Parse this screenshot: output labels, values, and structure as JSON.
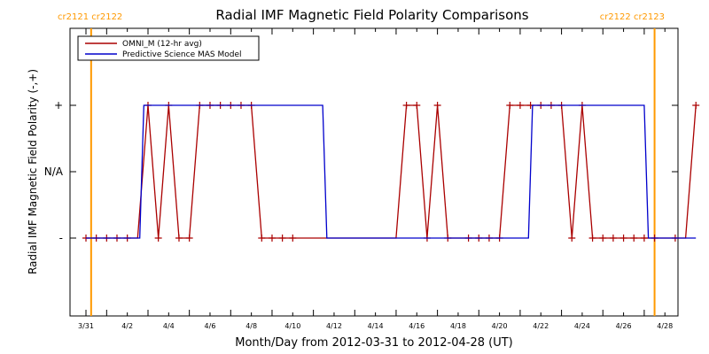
{
  "chart_data": {
    "type": "line",
    "title": "Radial IMF Magnetic Field Polarity Comparisons",
    "xlabel": "Month/Day from 2012-03-31 to 2012-04-28 (UT)",
    "ylabel": "Radial IMF Magnetic Field Polarity (-,+)",
    "xlim": [
      0,
      29.5
    ],
    "ylim": [
      -2,
      2
    ],
    "x_ticks": [
      {
        "x": 0,
        "label": "3/31"
      },
      {
        "x": 2,
        "label": "4/2"
      },
      {
        "x": 4,
        "label": "4/4"
      },
      {
        "x": 6,
        "label": "4/6"
      },
      {
        "x": 8,
        "label": "4/8"
      },
      {
        "x": 10,
        "label": "4/10"
      },
      {
        "x": 12,
        "label": "4/12"
      },
      {
        "x": 14,
        "label": "4/14"
      },
      {
        "x": 16,
        "label": "4/16"
      },
      {
        "x": 18,
        "label": "4/18"
      },
      {
        "x": 20,
        "label": "4/20"
      },
      {
        "x": 22,
        "label": "4/22"
      },
      {
        "x": 24,
        "label": "4/24"
      },
      {
        "x": 26,
        "label": "4/26"
      },
      {
        "x": 28,
        "label": "4/28"
      }
    ],
    "y_ticks": [
      {
        "y": 1,
        "label": "+"
      },
      {
        "y": 0,
        "label": "N/A"
      },
      {
        "y": -1,
        "label": "-"
      }
    ],
    "grid": false,
    "legend": "top-left",
    "carrington_markers": [
      {
        "x": 1.25,
        "label": "cr2121  cr2122",
        "align": "left",
        "color": "#ff9900"
      },
      {
        "x": 28.5,
        "label": "cr2122  cr2123",
        "align": "right",
        "color": "#ff9900"
      }
    ],
    "series": [
      {
        "name": "OMNI_M (12-hr avg)",
        "color": "#aa0000",
        "marker": "plus",
        "points": [
          [
            1.0,
            -1
          ],
          [
            1.5,
            -1
          ],
          [
            2.0,
            -1
          ],
          [
            2.5,
            -1
          ],
          [
            3.0,
            -1
          ],
          [
            3.5,
            -1
          ],
          [
            4.0,
            1
          ],
          [
            4.5,
            -1
          ],
          [
            5.0,
            1
          ],
          [
            5.5,
            -1
          ],
          [
            6.0,
            -1
          ],
          [
            6.5,
            1
          ],
          [
            7.0,
            1
          ],
          [
            7.5,
            1
          ],
          [
            8.0,
            1
          ],
          [
            8.5,
            1
          ],
          [
            9.0,
            1
          ],
          [
            9.5,
            -1
          ],
          [
            10.0,
            -1
          ],
          [
            10.5,
            -1
          ],
          [
            11.0,
            -1
          ],
          [
            11.5,
            -1
          ],
          [
            12.0,
            -1
          ],
          [
            12.5,
            -1
          ],
          [
            13.0,
            -1
          ],
          [
            13.5,
            -1
          ],
          [
            14.0,
            -1
          ],
          [
            14.5,
            -1
          ],
          [
            15.0,
            -1
          ],
          [
            15.5,
            -1
          ],
          [
            16.0,
            -1
          ],
          [
            16.5,
            1
          ],
          [
            17.0,
            1
          ],
          [
            17.5,
            -1
          ],
          [
            18.0,
            1
          ],
          [
            18.5,
            -1
          ],
          [
            19.0,
            -1
          ],
          [
            19.5,
            -1
          ],
          [
            20.0,
            -1
          ],
          [
            20.5,
            -1
          ],
          [
            21.0,
            -1
          ],
          [
            21.5,
            1
          ],
          [
            22.0,
            1
          ],
          [
            22.5,
            1
          ],
          [
            23.0,
            1
          ],
          [
            23.5,
            1
          ],
          [
            24.0,
            1
          ],
          [
            24.5,
            -1
          ],
          [
            25.0,
            1
          ],
          [
            25.5,
            -1
          ],
          [
            26.0,
            -1
          ],
          [
            26.5,
            -1
          ],
          [
            27.0,
            -1
          ],
          [
            27.5,
            -1
          ],
          [
            28.0,
            -1
          ],
          [
            28.5,
            -1
          ],
          [
            29.0,
            -1
          ],
          [
            29.5,
            -1
          ],
          [
            30.0,
            -1
          ],
          [
            30.5,
            1
          ]
        ],
        "marked_x": [
          1.0,
          1.5,
          2.0,
          2.5,
          3.0,
          4.0,
          4.5,
          5.0,
          5.5,
          6.0,
          6.5,
          7.0,
          7.5,
          8.0,
          8.5,
          9.0,
          9.5,
          10.0,
          10.5,
          11.0,
          16.5,
          17.0,
          17.5,
          18.0,
          18.5,
          19.5,
          20.0,
          20.5,
          21.0,
          21.5,
          22.0,
          22.5,
          23.0,
          23.5,
          24.0,
          24.5,
          25.0,
          25.5,
          26.0,
          26.5,
          27.0,
          27.5,
          28.0,
          28.5,
          29.5,
          30.5
        ]
      },
      {
        "name": "Predictive Science MAS Model",
        "color": "#0000cc",
        "marker": "none",
        "points": [
          [
            1.0,
            -1
          ],
          [
            3.6,
            -1
          ],
          [
            3.8,
            1
          ],
          [
            12.45,
            1
          ],
          [
            12.65,
            -1
          ],
          [
            22.4,
            -1
          ],
          [
            22.6,
            1
          ],
          [
            28.0,
            1
          ],
          [
            28.2,
            -1
          ],
          [
            30.5,
            -1
          ]
        ]
      }
    ]
  }
}
